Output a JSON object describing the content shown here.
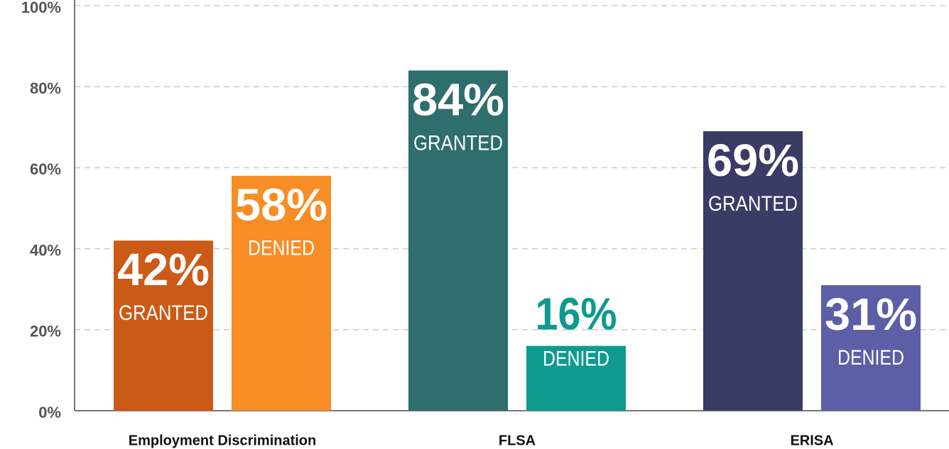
{
  "chart_data": {
    "type": "bar",
    "categories": [
      "Employment Discrimination",
      "FLSA",
      "ERISA"
    ],
    "series": [
      {
        "name": "GRANTED",
        "colors": [
          "#cc5a17",
          "#2e6e6c",
          "#3a3c66"
        ],
        "values": [
          42,
          84,
          69
        ],
        "value_labels": [
          "42%",
          "84%",
          "69%"
        ]
      },
      {
        "name": "DENIED",
        "colors": [
          "#f78d25",
          "#0e9a8f",
          "#5c5ea6"
        ],
        "values": [
          58,
          16,
          31
        ],
        "value_labels": [
          "58%",
          "16%",
          "31%"
        ]
      }
    ],
    "ylim": [
      0,
      100
    ],
    "yticks": [
      {
        "value": 0,
        "label": "0%"
      },
      {
        "value": 20,
        "label": "20%"
      },
      {
        "value": 40,
        "label": "40%"
      },
      {
        "value": 60,
        "label": "60%"
      },
      {
        "value": 80,
        "label": "80%"
      },
      {
        "value": 100,
        "label": "100%"
      }
    ],
    "grid": true
  }
}
